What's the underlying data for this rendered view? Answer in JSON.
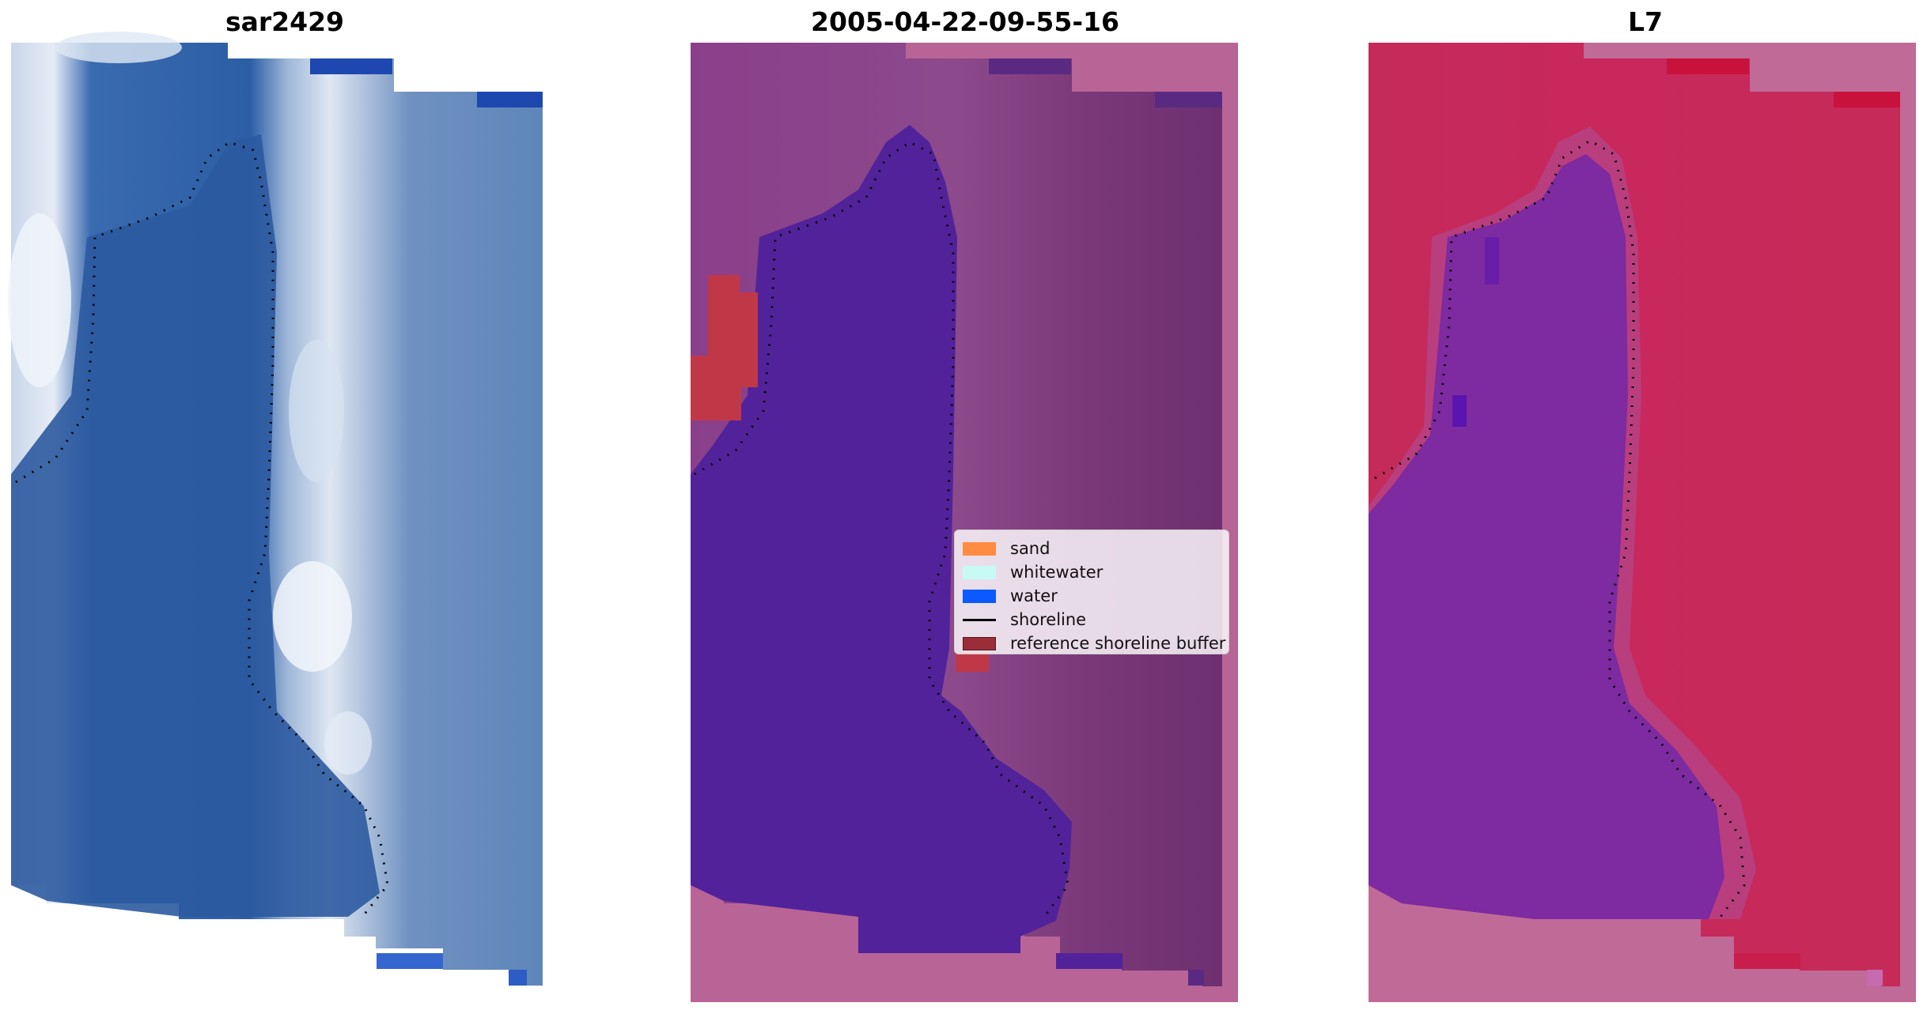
{
  "panels": [
    {
      "title": "sar2429"
    },
    {
      "title": "2005-04-22-09-55-16"
    },
    {
      "title": "L7"
    }
  ],
  "legend": {
    "items": [
      {
        "label": "sand",
        "color": "#ff8c42",
        "kind": "patch"
      },
      {
        "label": "whitewater",
        "color": "#c8faf5",
        "kind": "patch"
      },
      {
        "label": "water",
        "color": "#0a5aff",
        "kind": "patch"
      },
      {
        "label": "shoreline",
        "color": "#000000",
        "kind": "line"
      },
      {
        "label": "reference shoreline buffer",
        "color": "#9b2d38",
        "kind": "patch"
      }
    ]
  },
  "colors": {
    "rgb_water": "#2f5fa4",
    "rgb_surf": "#8aa6cc",
    "rgb_foam": "#e8eef8",
    "class_water": "#52229a",
    "class_land": "#7e3f80",
    "class_nodata": "#b96496",
    "class_buffer": "#c03848",
    "mndwi_water": "#7e2aa0",
    "mndwi_land": "#c8245c",
    "mndwi_nodata": "#c06a98"
  }
}
